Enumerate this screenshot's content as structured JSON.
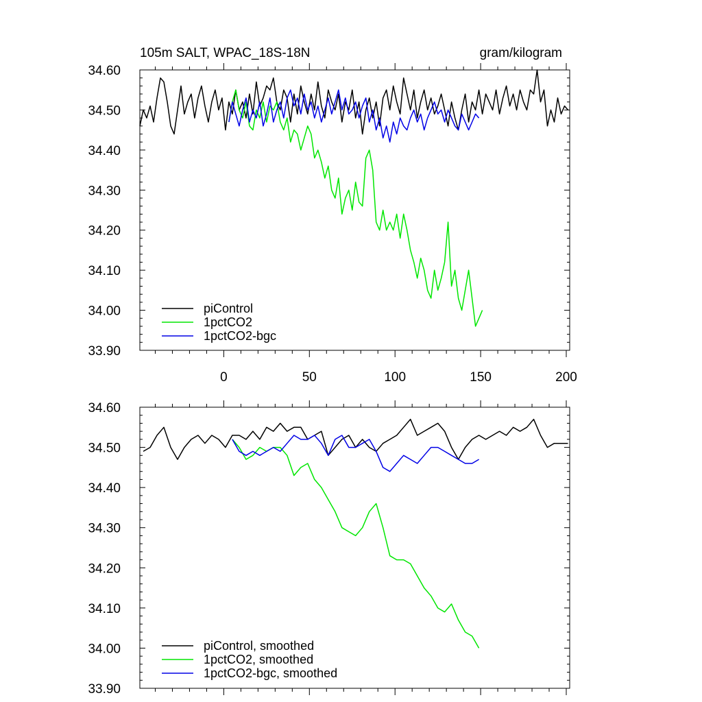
{
  "chart_data": [
    {
      "type": "line",
      "title": "105m SALT, WPAC_18S-18N",
      "units": "gram/kilogram",
      "xlabel": "",
      "ylabel": "",
      "xlim": [
        -49,
        202
      ],
      "ylim": [
        33.9,
        34.6
      ],
      "yticks": [
        "34.60",
        "34.50",
        "34.40",
        "34.30",
        "34.20",
        "34.10",
        "34.00",
        "33.90"
      ],
      "xticks": [
        "0",
        "50",
        "100",
        "150",
        "200"
      ],
      "legend": "bottom-left",
      "grid": false,
      "series": [
        {
          "name": "piControl",
          "color": "#000000",
          "x": [
            -49,
            -47,
            -45,
            -43,
            -41,
            -39,
            -37,
            -35,
            -33,
            -31,
            -29,
            -27,
            -25,
            -23,
            -21,
            -19,
            -17,
            -15,
            -13,
            -11,
            -9,
            -7,
            -5,
            -3,
            -1,
            1,
            3,
            5,
            7,
            9,
            11,
            13,
            15,
            17,
            19,
            21,
            23,
            25,
            27,
            29,
            31,
            33,
            35,
            37,
            39,
            41,
            43,
            45,
            47,
            49,
            51,
            53,
            55,
            57,
            59,
            61,
            63,
            65,
            67,
            69,
            71,
            73,
            75,
            77,
            79,
            81,
            83,
            85,
            87,
            89,
            91,
            93,
            95,
            97,
            99,
            101,
            103,
            105,
            107,
            109,
            111,
            113,
            115,
            117,
            119,
            121,
            123,
            125,
            127,
            129,
            131,
            133,
            135,
            137,
            139,
            141,
            143,
            145,
            147,
            149,
            151,
            153,
            155,
            157,
            159,
            161,
            163,
            165,
            167,
            169,
            171,
            173,
            175,
            177,
            179,
            181,
            183,
            185,
            187,
            189,
            191,
            193,
            195,
            197,
            199,
            201
          ],
          "y": [
            34.46,
            34.5,
            34.48,
            34.51,
            34.47,
            34.53,
            34.58,
            34.57,
            34.52,
            34.46,
            34.44,
            34.5,
            34.56,
            34.49,
            34.52,
            34.54,
            34.48,
            34.53,
            34.56,
            34.51,
            34.47,
            34.52,
            34.55,
            34.5,
            34.53,
            34.45,
            34.52,
            34.49,
            34.55,
            34.5,
            34.52,
            34.48,
            34.54,
            34.49,
            34.57,
            34.51,
            34.53,
            34.56,
            34.55,
            34.58,
            34.52,
            34.5,
            34.55,
            34.53,
            34.47,
            34.54,
            34.49,
            34.56,
            34.52,
            34.49,
            34.54,
            34.5,
            34.57,
            34.51,
            34.48,
            34.55,
            34.52,
            34.5,
            34.54,
            34.47,
            34.52,
            34.5,
            34.55,
            34.48,
            34.52,
            34.44,
            34.5,
            34.53,
            34.48,
            34.52,
            34.46,
            34.53,
            34.55,
            34.5,
            34.56,
            34.52,
            34.49,
            34.58,
            34.54,
            34.5,
            34.55,
            34.48,
            34.52,
            34.55,
            34.5,
            34.53,
            34.49,
            34.51,
            34.54,
            34.5,
            34.46,
            34.52,
            34.48,
            34.45,
            34.5,
            34.54,
            34.47,
            34.52,
            34.5,
            34.55,
            34.49,
            34.54,
            34.52,
            34.5,
            34.55,
            34.49,
            34.53,
            34.56,
            34.51,
            34.54,
            34.5,
            34.55,
            34.52,
            34.5,
            34.55,
            34.54,
            34.6,
            34.52,
            34.55,
            34.46,
            34.5,
            34.47,
            34.53,
            34.49,
            34.51,
            34.5
          ]
        },
        {
          "name": "1pctCO2",
          "color": "#00e600",
          "x": [
            3,
            5,
            7,
            9,
            11,
            13,
            15,
            17,
            19,
            21,
            23,
            25,
            27,
            29,
            31,
            33,
            35,
            37,
            39,
            41,
            43,
            45,
            47,
            49,
            51,
            53,
            55,
            57,
            59,
            61,
            63,
            65,
            67,
            69,
            71,
            73,
            75,
            77,
            79,
            81,
            83,
            85,
            87,
            89,
            91,
            93,
            95,
            97,
            99,
            101,
            103,
            105,
            107,
            109,
            111,
            113,
            115,
            117,
            119,
            121,
            123,
            125,
            127,
            129,
            131,
            133,
            135,
            137,
            139,
            141,
            143,
            145,
            147,
            149,
            151
          ],
          "y": [
            34.47,
            34.52,
            34.55,
            34.5,
            34.48,
            34.52,
            34.46,
            34.45,
            34.5,
            34.48,
            34.52,
            34.47,
            34.51,
            34.5,
            34.52,
            34.47,
            34.45,
            34.48,
            34.42,
            34.45,
            34.44,
            34.4,
            34.43,
            34.46,
            34.44,
            34.38,
            34.4,
            34.37,
            34.33,
            34.36,
            34.3,
            34.28,
            34.33,
            34.24,
            34.28,
            34.3,
            34.25,
            34.32,
            34.27,
            34.26,
            34.38,
            34.4,
            34.35,
            34.22,
            34.2,
            34.25,
            34.2,
            34.22,
            34.2,
            34.24,
            34.18,
            34.24,
            34.2,
            34.15,
            34.12,
            34.08,
            34.13,
            34.1,
            34.05,
            34.03,
            34.1,
            34.05,
            34.08,
            34.12,
            34.22,
            34.06,
            34.1,
            34.03,
            34.0,
            34.05,
            34.1,
            34.03,
            33.96,
            33.98,
            34.0
          ]
        },
        {
          "name": "1pctCO2-bgc",
          "color": "#0000e6",
          "x": [
            3,
            5,
            7,
            9,
            11,
            13,
            15,
            17,
            19,
            21,
            23,
            25,
            27,
            29,
            31,
            33,
            35,
            37,
            39,
            41,
            43,
            45,
            47,
            49,
            51,
            53,
            55,
            57,
            59,
            61,
            63,
            65,
            67,
            69,
            71,
            73,
            75,
            77,
            79,
            81,
            83,
            85,
            87,
            89,
            91,
            93,
            95,
            97,
            99,
            101,
            103,
            105,
            107,
            109,
            111,
            113,
            115,
            117,
            119,
            121,
            123,
            125,
            127,
            129,
            131,
            133,
            135,
            137,
            139,
            141,
            143,
            145,
            147,
            149
          ],
          "y": [
            34.47,
            34.52,
            34.49,
            34.46,
            34.5,
            34.53,
            34.47,
            34.5,
            34.48,
            34.52,
            34.46,
            34.49,
            34.53,
            34.47,
            34.5,
            34.52,
            34.48,
            34.53,
            34.55,
            34.51,
            34.53,
            34.49,
            34.54,
            34.5,
            34.52,
            34.48,
            34.51,
            34.47,
            34.5,
            34.53,
            34.49,
            34.52,
            34.55,
            34.5,
            34.53,
            34.49,
            34.5,
            34.52,
            34.48,
            34.51,
            34.53,
            34.47,
            34.5,
            34.45,
            34.48,
            34.43,
            34.46,
            34.42,
            34.47,
            34.44,
            34.48,
            34.46,
            34.45,
            34.48,
            34.5,
            34.47,
            34.49,
            34.45,
            34.48,
            34.5,
            34.52,
            34.49,
            34.5,
            34.47,
            34.5,
            34.48,
            34.46,
            34.45,
            34.49,
            34.47,
            34.45,
            34.47,
            34.49,
            34.48
          ]
        }
      ]
    },
    {
      "type": "line",
      "title": "",
      "xlabel": "",
      "ylabel": "",
      "xlim": [
        -49,
        202
      ],
      "ylim": [
        33.9,
        34.6
      ],
      "yticks": [
        "34.60",
        "34.50",
        "34.40",
        "34.30",
        "34.20",
        "34.10",
        "34.00",
        "33.90"
      ],
      "legend": "bottom-left",
      "grid": false,
      "series": [
        {
          "name": "piControl, smoothed",
          "color": "#000000",
          "x": [
            -47,
            -43,
            -39,
            -35,
            -31,
            -27,
            -23,
            -19,
            -15,
            -11,
            -7,
            -3,
            1,
            5,
            9,
            13,
            17,
            21,
            25,
            29,
            33,
            37,
            41,
            45,
            49,
            53,
            57,
            61,
            65,
            69,
            73,
            77,
            81,
            85,
            89,
            93,
            97,
            101,
            105,
            109,
            113,
            117,
            121,
            125,
            129,
            133,
            137,
            141,
            145,
            149,
            153,
            157,
            161,
            165,
            169,
            173,
            177,
            181,
            185,
            189,
            193,
            197,
            201
          ],
          "y": [
            34.49,
            34.5,
            34.53,
            34.55,
            34.5,
            34.47,
            34.5,
            34.52,
            34.53,
            34.51,
            34.53,
            34.52,
            34.5,
            34.53,
            34.53,
            34.52,
            34.54,
            34.52,
            34.55,
            34.54,
            34.56,
            34.54,
            34.55,
            34.55,
            34.52,
            34.53,
            34.54,
            34.48,
            34.5,
            34.52,
            34.53,
            34.5,
            34.52,
            34.5,
            34.49,
            34.51,
            34.52,
            34.53,
            34.55,
            34.57,
            34.53,
            34.54,
            34.55,
            34.56,
            34.54,
            34.5,
            34.47,
            34.5,
            34.52,
            34.53,
            34.52,
            34.53,
            34.54,
            34.53,
            34.55,
            34.54,
            34.55,
            34.57,
            34.53,
            34.5,
            34.51,
            34.51,
            34.51
          ]
        },
        {
          "name": "1pctCO2, smoothed",
          "color": "#00e600",
          "x": [
            5,
            9,
            13,
            17,
            21,
            25,
            29,
            33,
            37,
            41,
            45,
            49,
            53,
            57,
            61,
            65,
            69,
            73,
            77,
            81,
            85,
            89,
            93,
            97,
            101,
            105,
            109,
            113,
            117,
            121,
            125,
            129,
            133,
            137,
            141,
            145,
            149
          ],
          "y": [
            34.52,
            34.5,
            34.47,
            34.48,
            34.5,
            34.49,
            34.5,
            34.5,
            34.48,
            34.43,
            34.45,
            34.46,
            34.42,
            34.4,
            34.37,
            34.34,
            34.3,
            34.29,
            34.28,
            34.3,
            34.34,
            34.36,
            34.3,
            34.23,
            34.22,
            34.22,
            34.21,
            34.18,
            34.15,
            34.13,
            34.1,
            34.09,
            34.11,
            34.07,
            34.04,
            34.03,
            34.0
          ]
        },
        {
          "name": "1pctCO2-bgc, smoothed",
          "color": "#0000e6",
          "x": [
            5,
            9,
            13,
            17,
            21,
            25,
            29,
            33,
            37,
            41,
            45,
            49,
            53,
            57,
            61,
            65,
            69,
            73,
            77,
            81,
            85,
            89,
            93,
            97,
            101,
            105,
            109,
            113,
            117,
            121,
            125,
            129,
            133,
            137,
            141,
            145,
            149
          ],
          "y": [
            34.52,
            34.49,
            34.48,
            34.49,
            34.48,
            34.49,
            34.5,
            34.49,
            34.51,
            34.53,
            34.52,
            34.52,
            34.53,
            34.51,
            34.48,
            34.52,
            34.53,
            34.5,
            34.5,
            34.51,
            34.52,
            34.49,
            34.45,
            34.44,
            34.46,
            34.48,
            34.47,
            34.46,
            34.48,
            34.5,
            34.5,
            34.49,
            34.48,
            34.47,
            34.46,
            34.46,
            34.47
          ]
        }
      ]
    }
  ]
}
